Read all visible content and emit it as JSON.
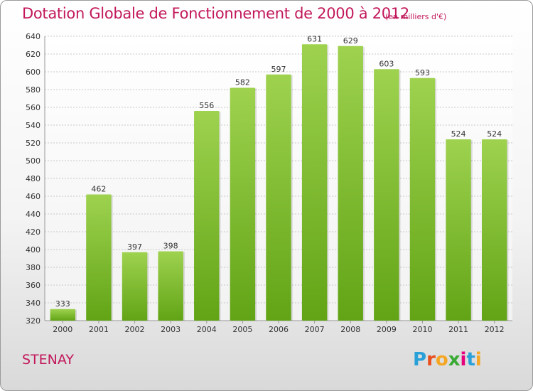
{
  "header": {
    "title": "Dotation Globale de Fonctionnement de 2000 à 2012",
    "subtitle": "(en milliers d'€)"
  },
  "footer": {
    "commune": "STENAY",
    "logo": {
      "letters": [
        "P",
        "r",
        "o",
        "x",
        "i",
        "t",
        "i"
      ],
      "colors": [
        "#2aa0d8",
        "#e84e1b",
        "#f5a623",
        "#3aa935",
        "#e6007e",
        "#2aa0d8",
        "#f5a623"
      ]
    }
  },
  "chart_data": {
    "type": "bar",
    "categories": [
      "2000",
      "2001",
      "2002",
      "2003",
      "2004",
      "2005",
      "2006",
      "2007",
      "2008",
      "2009",
      "2010",
      "2011",
      "2012"
    ],
    "values": [
      333,
      462,
      397,
      398,
      556,
      582,
      597,
      631,
      629,
      603,
      593,
      524,
      524
    ],
    "value_labels": [
      "333",
      "462",
      "397",
      "398",
      "556",
      "582",
      "597",
      "631",
      "629",
      "603",
      "593",
      "524",
      "524"
    ],
    "ylim": [
      320,
      640
    ],
    "yticks": [
      320,
      340,
      360,
      380,
      400,
      420,
      440,
      460,
      480,
      500,
      520,
      540,
      560,
      580,
      600,
      620,
      640
    ],
    "ytick_labels": [
      "320",
      "340",
      "360",
      "380",
      "400",
      "420",
      "440",
      "460",
      "480",
      "500",
      "520",
      "540",
      "560",
      "580",
      "600",
      "620",
      "640"
    ],
    "grid": true,
    "bar_color_top": "#9ed24f",
    "bar_color_bottom": "#62a416",
    "xlabel": "",
    "ylabel": ""
  }
}
